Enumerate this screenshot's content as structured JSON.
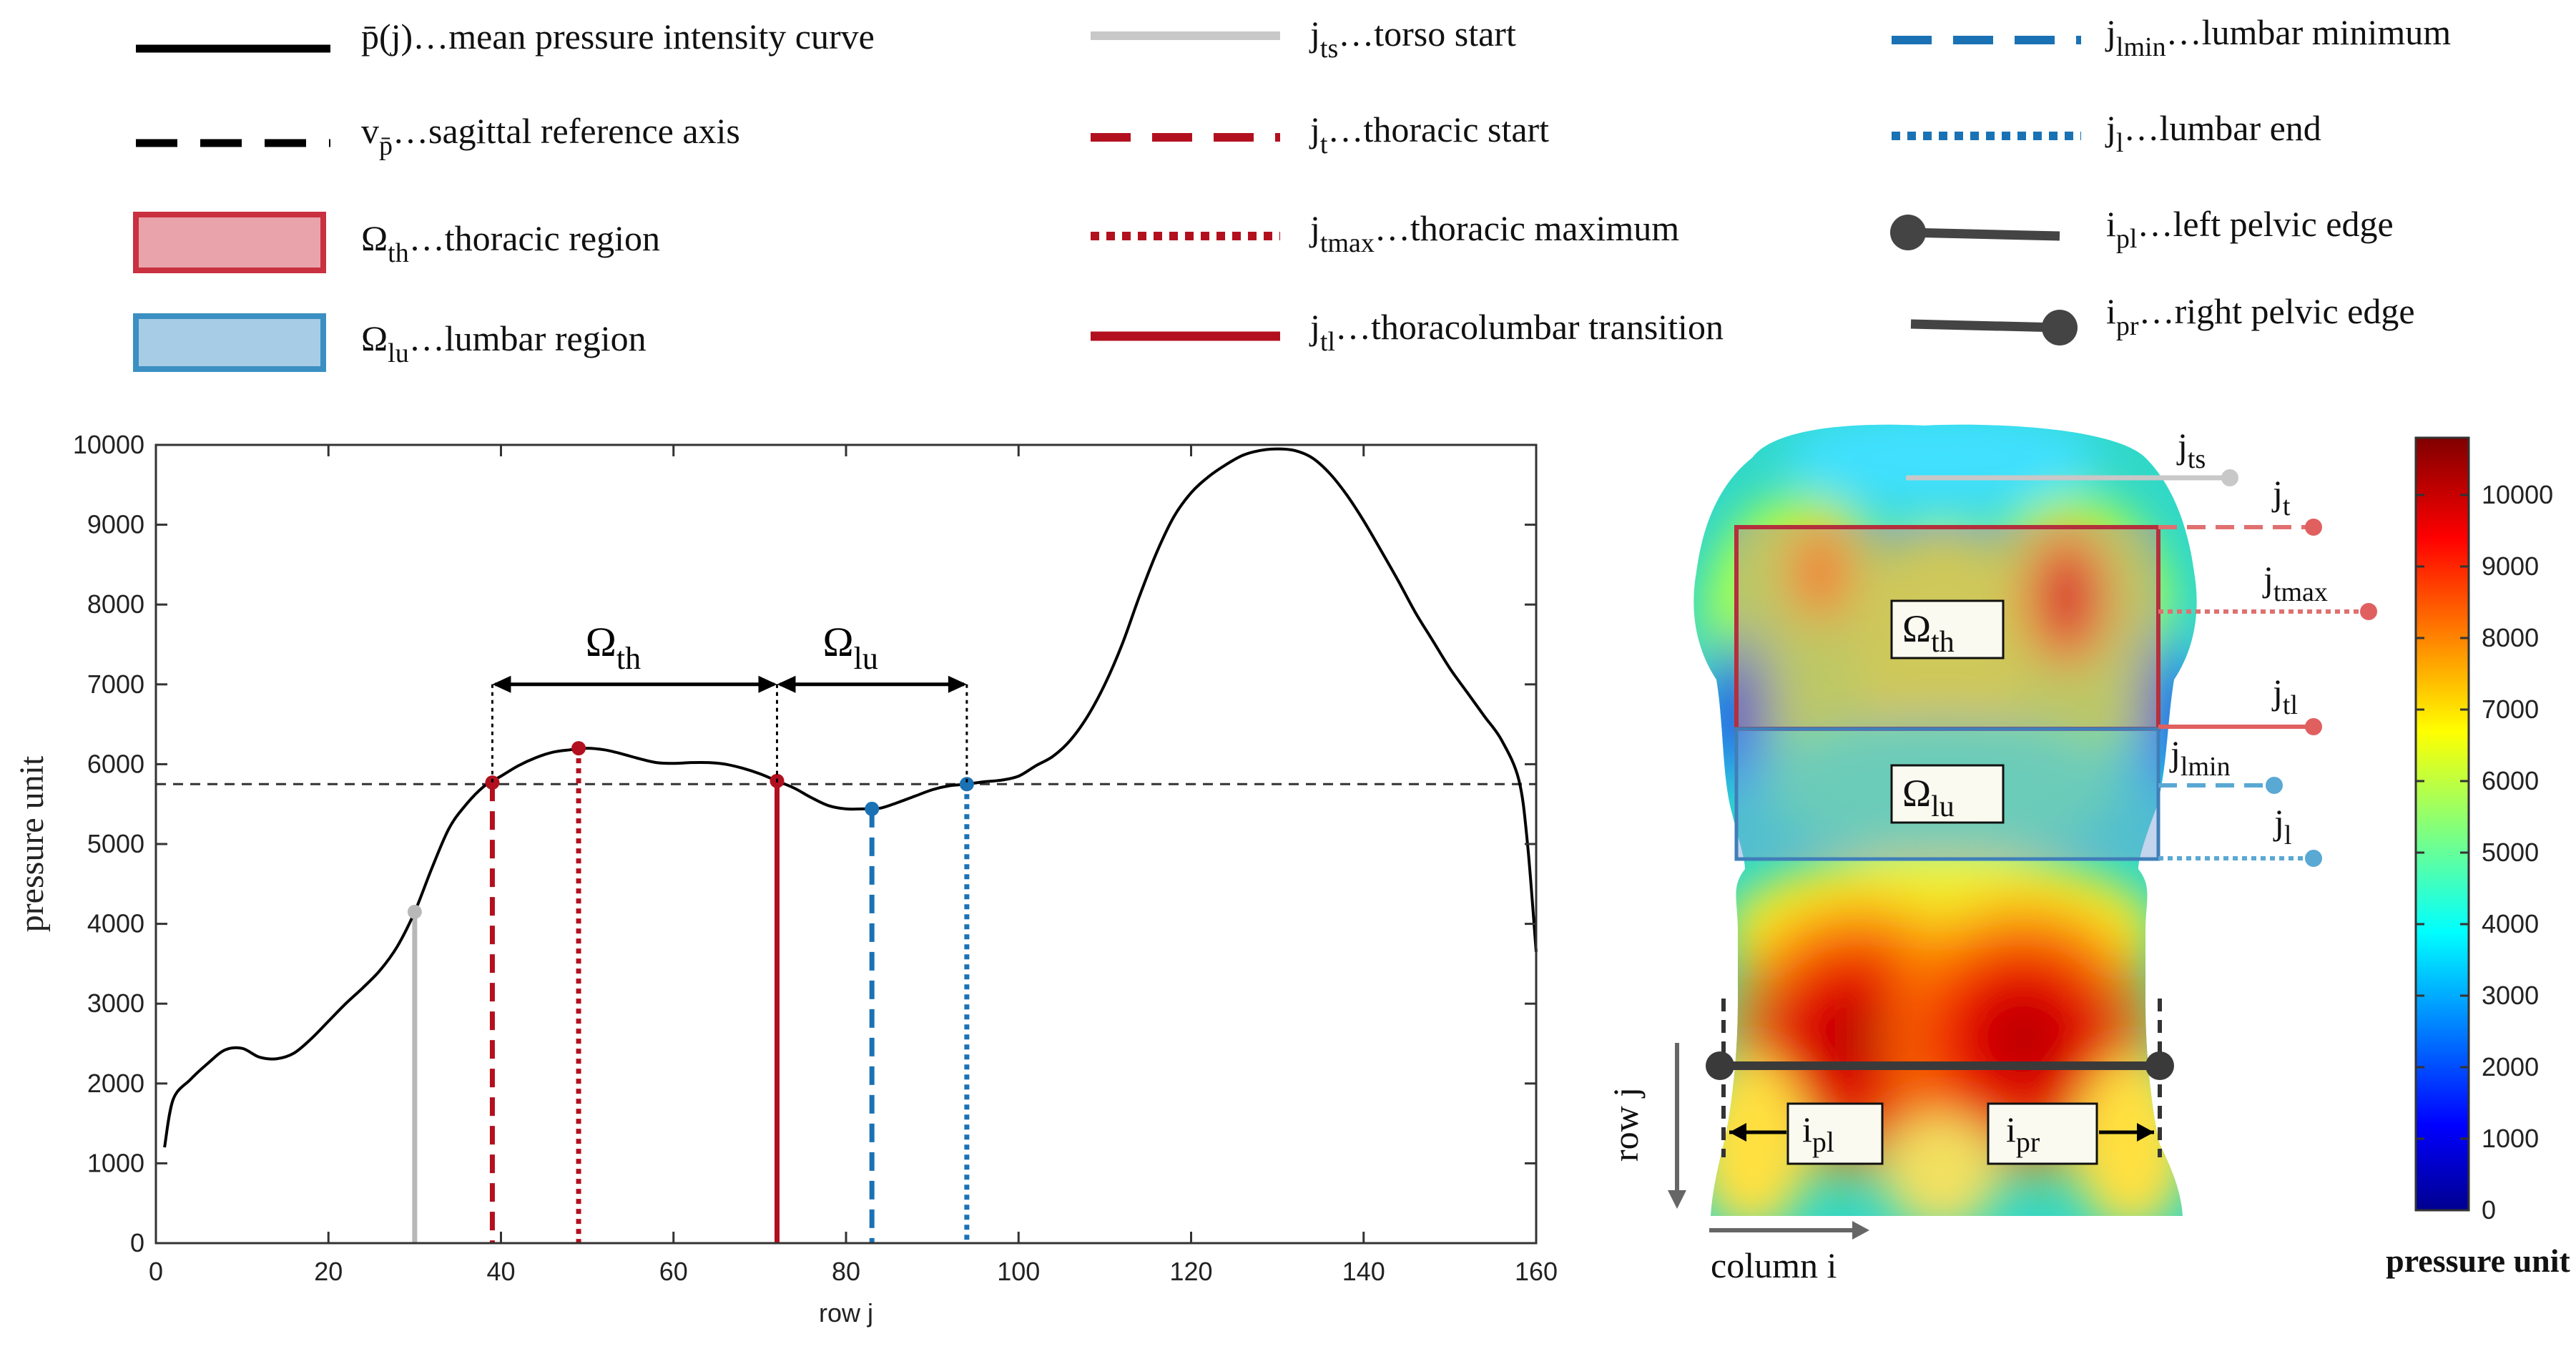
{
  "colors": {
    "curve": "#000000",
    "reference": "#333333",
    "torso": "#b8b8b8",
    "thoracic": "#b3101f",
    "thoracic_point": "#9c1830",
    "lumbar": "#1a72b5",
    "pelvic": "#444444",
    "thoracic_fill": "#e8a4aa",
    "thoracic_edge": "#c93040",
    "lumbar_fill": "#a7cde6",
    "lumbar_edge": "#3b8fc2"
  },
  "legend": [
    {
      "key": "mean-curve",
      "symbol": "solid-black",
      "pre": "p̄(j)",
      "sub": "",
      "post": "…mean pressure intensity curve"
    },
    {
      "key": "sagittal-axis",
      "symbol": "dashed-black",
      "pre": "v",
      "sub": "p̄",
      "post": "…sagittal reference axis"
    },
    {
      "key": "thoracic-region",
      "symbol": "red-box",
      "pre": "Ω",
      "sub": "th",
      "post": "…thoracic region"
    },
    {
      "key": "lumbar-region",
      "symbol": "blue-box",
      "pre": "Ω",
      "sub": "lu",
      "post": "…lumbar region"
    },
    {
      "key": "torso-start",
      "symbol": "solid-gray",
      "pre": "j",
      "sub": "ts",
      "post": "…torso start"
    },
    {
      "key": "thoracic-start",
      "symbol": "dashed-red",
      "pre": "j",
      "sub": "t",
      "post": "…thoracic start"
    },
    {
      "key": "thoracic-maximum",
      "symbol": "dotted-red",
      "pre": "j",
      "sub": "tmax",
      "post": "…thoracic maximum"
    },
    {
      "key": "thoracolumbar-transition",
      "symbol": "solid-red",
      "pre": "j",
      "sub": "tl",
      "post": "…thoracolumbar transition"
    },
    {
      "key": "lumbar-minimum",
      "symbol": "dashed-blue",
      "pre": "j",
      "sub": "lmin",
      "post": "…lumbar minimum"
    },
    {
      "key": "lumbar-end",
      "symbol": "dotted-blue",
      "pre": "j",
      "sub": "l",
      "post": "…lumbar end"
    },
    {
      "key": "left-pelvic-edge",
      "symbol": "pelvic-left",
      "pre": "i",
      "sub": "pl",
      "post": "…left pelvic edge"
    },
    {
      "key": "right-pelvic-edge",
      "symbol": "pelvic-right",
      "pre": "i",
      "sub": "pr",
      "post": "…right pelvic edge"
    }
  ],
  "chart_data": {
    "type": "line",
    "xlabel": "row j",
    "ylabel": "pressure unit",
    "xlim": [
      0,
      160
    ],
    "ylim": [
      0,
      10000
    ],
    "xticks": [
      0,
      20,
      40,
      60,
      80,
      100,
      120,
      140,
      160
    ],
    "yticks": [
      0,
      1000,
      2000,
      3000,
      4000,
      5000,
      6000,
      7000,
      8000,
      9000,
      10000
    ],
    "series": [
      {
        "name": "mean pressure intensity curve",
        "points": [
          [
            1,
            1200
          ],
          [
            2,
            1800
          ],
          [
            4,
            2050
          ],
          [
            6,
            2250
          ],
          [
            8,
            2420
          ],
          [
            10,
            2440
          ],
          [
            12,
            2330
          ],
          [
            14,
            2310
          ],
          [
            16,
            2380
          ],
          [
            18,
            2560
          ],
          [
            20,
            2780
          ],
          [
            22,
            3000
          ],
          [
            24,
            3200
          ],
          [
            26,
            3420
          ],
          [
            28,
            3720
          ],
          [
            30,
            4150
          ],
          [
            32,
            4700
          ],
          [
            34,
            5200
          ],
          [
            36,
            5500
          ],
          [
            38,
            5720
          ],
          [
            40,
            5850
          ],
          [
            42,
            5980
          ],
          [
            44,
            6080
          ],
          [
            46,
            6150
          ],
          [
            48,
            6180
          ],
          [
            50,
            6200
          ],
          [
            52,
            6180
          ],
          [
            54,
            6130
          ],
          [
            56,
            6070
          ],
          [
            58,
            6020
          ],
          [
            60,
            6010
          ],
          [
            62,
            6020
          ],
          [
            64,
            6020
          ],
          [
            66,
            6000
          ],
          [
            68,
            5950
          ],
          [
            70,
            5880
          ],
          [
            72,
            5790
          ],
          [
            74,
            5700
          ],
          [
            76,
            5580
          ],
          [
            78,
            5480
          ],
          [
            80,
            5440
          ],
          [
            82,
            5440
          ],
          [
            84,
            5450
          ],
          [
            86,
            5520
          ],
          [
            88,
            5600
          ],
          [
            90,
            5680
          ],
          [
            92,
            5730
          ],
          [
            94,
            5750
          ],
          [
            96,
            5780
          ],
          [
            98,
            5800
          ],
          [
            100,
            5850
          ],
          [
            102,
            5980
          ],
          [
            104,
            6100
          ],
          [
            106,
            6300
          ],
          [
            108,
            6600
          ],
          [
            110,
            7000
          ],
          [
            112,
            7500
          ],
          [
            114,
            8100
          ],
          [
            116,
            8650
          ],
          [
            118,
            9100
          ],
          [
            120,
            9400
          ],
          [
            122,
            9600
          ],
          [
            124,
            9750
          ],
          [
            126,
            9870
          ],
          [
            128,
            9930
          ],
          [
            130,
            9950
          ],
          [
            132,
            9930
          ],
          [
            134,
            9840
          ],
          [
            136,
            9650
          ],
          [
            138,
            9380
          ],
          [
            140,
            9050
          ],
          [
            142,
            8680
          ],
          [
            144,
            8300
          ],
          [
            146,
            7900
          ],
          [
            148,
            7550
          ],
          [
            150,
            7200
          ],
          [
            152,
            6900
          ],
          [
            154,
            6600
          ],
          [
            156,
            6300
          ],
          [
            158,
            5800
          ],
          [
            159,
            5000
          ],
          [
            160,
            3650
          ]
        ]
      }
    ],
    "reference_line": {
      "name": "sagittal reference axis",
      "y": 5750
    },
    "markers": [
      {
        "name": "torso start",
        "x": 30,
        "y": 4150,
        "style": "solid",
        "color": "#b8b8b8"
      },
      {
        "name": "thoracic start",
        "x": 39,
        "y": 5770,
        "style": "dashed",
        "color": "#b3101f"
      },
      {
        "name": "thoracic maximum",
        "x": 49,
        "y": 6200,
        "style": "dotted",
        "color": "#b3101f"
      },
      {
        "name": "thoracolumbar transition",
        "x": 72,
        "y": 5790,
        "style": "solid",
        "color": "#b3101f"
      },
      {
        "name": "lumbar minimum",
        "x": 83,
        "y": 5440,
        "style": "dashed",
        "color": "#1a72b5"
      },
      {
        "name": "lumbar end",
        "x": 94,
        "y": 5750,
        "style": "dotted",
        "color": "#1a72b5"
      }
    ],
    "regions": [
      {
        "name": "thoracic region",
        "label": "Ω",
        "sub": "th",
        "x0": 39,
        "x1": 72,
        "y": 7000
      },
      {
        "name": "lumbar region",
        "label": "Ω",
        "sub": "lu",
        "x0": 72,
        "x1": 94,
        "y": 7000
      }
    ]
  },
  "heatmap": {
    "labels": {
      "jts": {
        "pre": "j",
        "sub": "ts"
      },
      "jt": {
        "pre": "j",
        "sub": "t"
      },
      "jtmax": {
        "pre": "j",
        "sub": "tmax"
      },
      "jtl": {
        "pre": "j",
        "sub": "tl"
      },
      "jlmin": {
        "pre": "j",
        "sub": "lmin"
      },
      "jl": {
        "pre": "j",
        "sub": "l"
      },
      "omega_th": {
        "pre": "Ω",
        "sub": "th"
      },
      "omega_lu": {
        "pre": "Ω",
        "sub": "lu"
      },
      "ipl": {
        "pre": "i",
        "sub": "pl"
      },
      "ipr": {
        "pre": "i",
        "sub": "pr"
      }
    },
    "row_axis_label": "row j",
    "column_axis_label": "column i"
  },
  "colorbar": {
    "label": "pressure unit",
    "min": 0,
    "max": 10800,
    "ticks": [
      0,
      1000,
      2000,
      3000,
      4000,
      5000,
      6000,
      7000,
      8000,
      9000,
      10000
    ]
  }
}
